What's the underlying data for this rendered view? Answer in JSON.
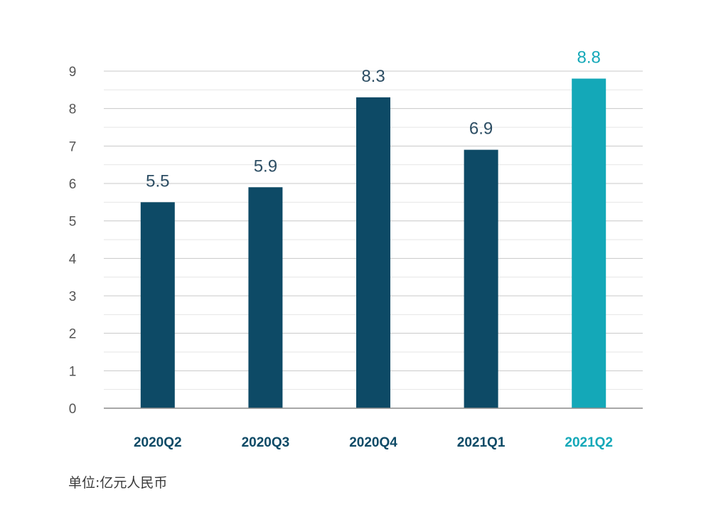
{
  "chart_data": {
    "type": "bar",
    "categories": [
      "2020Q2",
      "2020Q3",
      "2020Q4",
      "2021Q1",
      "2021Q2"
    ],
    "values": [
      5.5,
      5.9,
      8.3,
      6.9,
      8.8
    ],
    "value_labels": [
      "5.5",
      "5.9",
      "8.3",
      "6.9",
      "8.8"
    ],
    "ylim": [
      0,
      9
    ],
    "y_ticks": [
      "0",
      "1",
      "2",
      "3",
      "4",
      "5",
      "6",
      "7",
      "8",
      "9"
    ],
    "grid": true,
    "highlight_index": 4,
    "colors": {
      "bar": "#0d4a66",
      "highlight": "#14a8b8",
      "grid": "#c8c8c8",
      "minor_grid": "#e6e6e6",
      "axis": "#8a8a8a",
      "tick_text": "#555555",
      "value_text": "#2c4d63"
    }
  },
  "footer": {
    "unit_note": "单位:亿元人民币"
  }
}
